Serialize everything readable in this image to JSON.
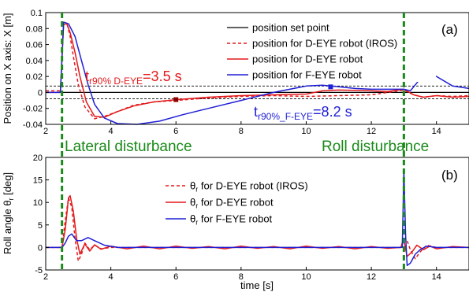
{
  "chart_data": [
    {
      "id": "a",
      "type": "line",
      "panel_label": "(a)",
      "xlabel": "",
      "ylabel": "Position on X axis: X [m]",
      "xlim": [
        2,
        15
      ],
      "ylim": [
        -0.04,
        0.1
      ],
      "xticks": [
        2,
        4,
        6,
        8,
        10,
        12,
        14
      ],
      "yticks": [
        -0.04,
        -0.02,
        0,
        0.02,
        0.04,
        0.06,
        0.08,
        0.1
      ],
      "ytick_labels": [
        "-0.04",
        "-0.02",
        "0",
        "0.02",
        "0.04",
        "0.06",
        "0.08",
        "0.1"
      ],
      "grid": false,
      "legend_position": "top-right",
      "legend": [
        {
          "label": "position set point",
          "color": "#000000",
          "style": "solid"
        },
        {
          "label": "position for D-EYE robot (IROS)",
          "color": "#e31a1c",
          "style": "dashed"
        },
        {
          "label": "position for D-EYE robot",
          "color": "#e31a1c",
          "style": "solid"
        },
        {
          "label": "position for F-EYE robot",
          "color": "#1f1fd6",
          "style": "solid"
        }
      ],
      "tolerance_band": [
        -0.008,
        0.008
      ],
      "series": [
        {
          "name": "position set point",
          "color": "#000000",
          "style": "solid",
          "x": [
            2,
            15
          ],
          "y": [
            0,
            0
          ]
        },
        {
          "name": "position for D-EYE robot (IROS)",
          "color": "#e31a1c",
          "style": "dashed",
          "x": [
            2,
            2.45,
            2.55,
            2.65,
            2.75,
            2.85,
            3.0,
            3.2,
            3.5,
            3.8,
            4.2,
            4.7,
            5.3,
            6.0,
            7.0,
            8.0,
            9.0,
            10.0,
            11.0,
            12.0,
            13.0,
            13.3,
            13.6,
            14.0,
            14.5,
            15.0
          ],
          "y": [
            0.002,
            0.002,
            0.088,
            0.087,
            0.07,
            0.045,
            0.01,
            -0.018,
            -0.033,
            -0.03,
            -0.024,
            -0.016,
            -0.012,
            -0.01,
            -0.007,
            -0.005,
            -0.004,
            -0.005,
            -0.004,
            -0.003,
            0.003,
            -0.003,
            -0.006,
            -0.004,
            -0.005,
            -0.004
          ]
        },
        {
          "name": "position for D-EYE robot",
          "color": "#e31a1c",
          "style": "solid",
          "x": [
            2,
            2.45,
            2.55,
            2.65,
            2.75,
            2.9,
            3.05,
            3.25,
            3.5,
            3.8,
            4.2,
            4.7,
            5.3,
            6.0,
            7.0,
            8.0,
            9.0,
            10.0,
            10.5,
            11.0,
            12.0,
            12.5,
            13.0,
            13.3,
            13.6,
            14.0,
            14.5,
            15.0
          ],
          "y": [
            0.0,
            0.0,
            0.085,
            0.086,
            0.075,
            0.05,
            0.02,
            -0.012,
            -0.03,
            -0.031,
            -0.024,
            -0.017,
            -0.012,
            -0.009,
            -0.006,
            -0.004,
            -0.003,
            -0.002,
            0.002,
            0.003,
            0.002,
            0.001,
            0.004,
            -0.003,
            -0.006,
            -0.004,
            -0.006,
            -0.005
          ]
        },
        {
          "name": "position for F-EYE robot",
          "color": "#1f1fd6",
          "style": "solid",
          "x": [
            2,
            2.45,
            2.55,
            2.7,
            2.9,
            3.1,
            3.3,
            3.5,
            3.8,
            4.2,
            4.8,
            5.5,
            6.2,
            7.0,
            8.0,
            9.0,
            10.0,
            10.5,
            11.0,
            11.5,
            12.0,
            12.5,
            13.0,
            13.2,
            13.4,
            13.6,
            13.8,
            14.0,
            14.5,
            15.0
          ],
          "y": [
            0.0,
            0.0,
            0.088,
            0.086,
            0.07,
            0.04,
            0.01,
            -0.015,
            -0.032,
            -0.039,
            -0.04,
            -0.036,
            -0.028,
            -0.02,
            -0.01,
            0.0,
            0.008,
            0.009,
            0.007,
            0.005,
            0.004,
            0.004,
            0.004,
            0.002,
            0.012,
            0.022,
            0.023,
            0.02,
            0.008,
            0.005
          ]
        }
      ],
      "markers": [
        {
          "x": 6.0,
          "y": -0.009,
          "color": "#8b0000"
        },
        {
          "x": 10.75,
          "y": 0.007,
          "color": "#1f1fd6"
        }
      ],
      "annotations": [
        {
          "main": "t",
          "sub": "r90% D-EYE",
          "rest": "=3.5 s",
          "color": "#e31a1c",
          "x": 3.2,
          "y": 0.026
        },
        {
          "main": "t",
          "sub": "r90%_F-EYE",
          "rest": "=8.2 s",
          "color": "#1f1fd6",
          "x": 9.6,
          "y": -0.026
        }
      ]
    },
    {
      "id": "b",
      "type": "line",
      "panel_label": "(b)",
      "xlabel": "time [s]",
      "ylabel_main": "Roll angle θ",
      "ylabel_sub": "r",
      "ylabel_unit": "[deg]",
      "xlim": [
        2,
        15
      ],
      "ylim": [
        -5,
        20
      ],
      "xticks": [
        2,
        4,
        6,
        8,
        10,
        12,
        14
      ],
      "yticks": [
        -5,
        0,
        5,
        10,
        15,
        20
      ],
      "ytick_labels": [
        "-5",
        "0",
        "5",
        "10",
        "15",
        "20"
      ],
      "grid": false,
      "legend_position": "top-center",
      "legend": [
        {
          "main": "θ",
          "sub": "r",
          "rest": " for D-EYE robot (IROS)",
          "color": "#e31a1c",
          "style": "dashed"
        },
        {
          "main": "θ",
          "sub": "r",
          "rest": " for D-EYE robot",
          "color": "#e31a1c",
          "style": "solid"
        },
        {
          "main": "θ",
          "sub": "r",
          "rest": " for F-EYE robot",
          "color": "#1f1fd6",
          "style": "solid"
        }
      ],
      "series": [
        {
          "name": "θr for D-EYE robot (IROS)",
          "color": "#e31a1c",
          "style": "dashed",
          "x": [
            2,
            2.5,
            2.6,
            2.7,
            2.8,
            2.9,
            3.0,
            3.1,
            3.2,
            3.35,
            3.5,
            3.7,
            4.0,
            5.0,
            6.0,
            7.0,
            8.0,
            9.0,
            10.0,
            11.0,
            12.0,
            12.9,
            13.0,
            13.1,
            13.2,
            13.35,
            13.5,
            13.7,
            14.0,
            15.0
          ],
          "y": [
            0,
            0,
            6,
            11,
            9,
            2,
            -3,
            -1.5,
            1,
            -0.5,
            0.5,
            -0.3,
            0,
            0,
            0,
            0,
            0,
            0,
            0,
            0,
            0,
            0,
            2,
            1.5,
            -0.5,
            -2.5,
            -1,
            0.5,
            0,
            0
          ]
        },
        {
          "name": "θr for D-EYE robot",
          "color": "#e31a1c",
          "style": "solid",
          "x": [
            2,
            2.5,
            2.6,
            2.7,
            2.75,
            2.85,
            2.95,
            3.05,
            3.2,
            3.35,
            3.5,
            3.7,
            4.0,
            4.5,
            5.0,
            5.5,
            6.0,
            6.5,
            7.0,
            7.5,
            8.0,
            8.5,
            9.0,
            9.5,
            10.0,
            10.5,
            11.0,
            11.5,
            12.0,
            12.5,
            12.9,
            13.0,
            13.1,
            13.25,
            13.4,
            13.6,
            13.8,
            14.0,
            14.5,
            15.0
          ],
          "y": [
            0,
            0,
            4,
            11,
            11.5,
            8,
            2,
            -1.5,
            0.8,
            -0.8,
            0.6,
            -0.4,
            0.3,
            -0.3,
            0.3,
            -0.3,
            0.3,
            -0.2,
            0.2,
            -0.3,
            0.3,
            -0.2,
            0.2,
            -0.3,
            0.3,
            -0.2,
            0.2,
            -0.3,
            0.2,
            -0.2,
            0,
            1.5,
            -2,
            -1,
            0.5,
            -0.5,
            0.3,
            -0.3,
            0.2,
            0
          ]
        },
        {
          "name": "θr for F-EYE robot",
          "color": "#1f1fd6",
          "style": "solid",
          "x": [
            2,
            2.5,
            2.6,
            2.7,
            2.8,
            2.95,
            3.1,
            3.3,
            3.5,
            3.8,
            4.2,
            5.0,
            6.0,
            7.0,
            8.0,
            9.0,
            10.0,
            11.0,
            12.0,
            12.95,
            13.0,
            13.05,
            13.1,
            13.2,
            13.35,
            13.5,
            13.7,
            14.0,
            14.5,
            15.0
          ],
          "y": [
            0,
            0,
            1,
            2.5,
            3,
            1.5,
            1.5,
            2.2,
            1.5,
            0.5,
            0,
            0,
            0,
            0,
            0,
            0,
            0,
            0,
            0,
            0,
            17,
            3,
            -4,
            -3.5,
            -1.5,
            -0.5,
            0.3,
            0,
            0,
            0
          ]
        }
      ]
    }
  ],
  "vertical_markers": {
    "x": [
      2.5,
      13.0
    ],
    "color": "#1a8a1a",
    "style": "dashed"
  },
  "disturbance_labels": [
    {
      "text": "Lateral disturbance",
      "color": "#1a8a1a"
    },
    {
      "text": "Roll disturbance",
      "color": "#1a8a1a"
    }
  ]
}
